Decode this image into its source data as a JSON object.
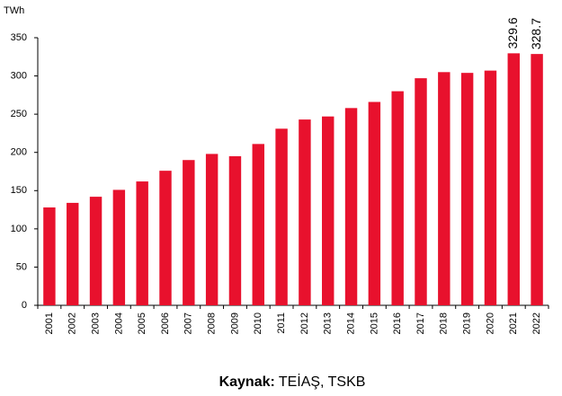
{
  "chart_data": {
    "type": "bar",
    "y_unit": "TWh",
    "categories": [
      "2001",
      "2002",
      "2003",
      "2004",
      "2005",
      "2006",
      "2007",
      "2008",
      "2009",
      "2010",
      "2011",
      "2012",
      "2013",
      "2014",
      "2015",
      "2016",
      "2017",
      "2018",
      "2019",
      "2020",
      "2021",
      "2022"
    ],
    "values": [
      128,
      134,
      142,
      151,
      162,
      176,
      190,
      198,
      195,
      211,
      231,
      243,
      247,
      258,
      266,
      280,
      297,
      305,
      304,
      307,
      329.6,
      328.7
    ],
    "value_labels": [
      null,
      null,
      null,
      null,
      null,
      null,
      null,
      null,
      null,
      null,
      null,
      null,
      null,
      null,
      null,
      null,
      null,
      null,
      null,
      null,
      "329.6",
      "328.7"
    ],
    "color": "#e8112d",
    "ylim": [
      0,
      350
    ],
    "yticks": [
      0,
      50,
      100,
      150,
      200,
      250,
      300,
      350
    ],
    "grid": false,
    "source": {
      "label": "Kaynak:",
      "text": "TEİAŞ, TSKB"
    }
  }
}
